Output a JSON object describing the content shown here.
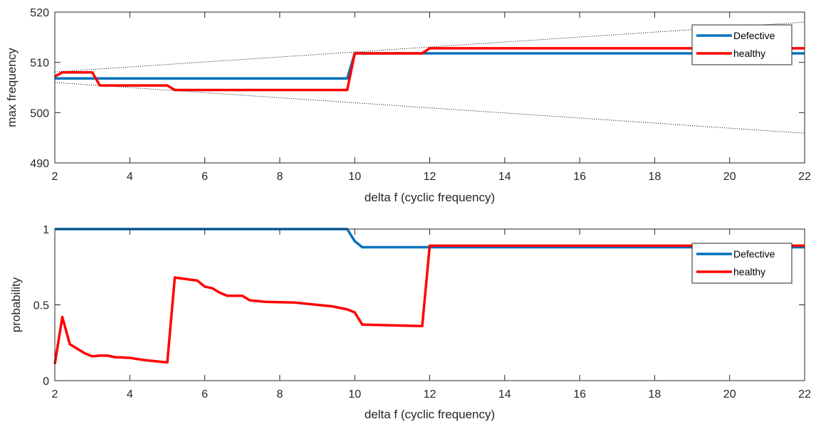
{
  "chart_data": [
    {
      "type": "line",
      "xlabel": "delta f (cyclic frequency)",
      "ylabel": "max frequency",
      "xlim": [
        2,
        22
      ],
      "ylim": [
        490,
        520
      ],
      "xticks": [
        "2",
        "4",
        "6",
        "8",
        "10",
        "12",
        "14",
        "16",
        "18",
        "20",
        "22"
      ],
      "yticks": [
        "490",
        "500",
        "510",
        "520"
      ],
      "legend_position": "top-right",
      "grid": false,
      "series": [
        {
          "name": "Defective",
          "color": "#0072BD",
          "points": [
            [
              2,
              506.8
            ],
            [
              9.8,
              506.8
            ],
            [
              10,
              511.8
            ],
            [
              22,
              511.8
            ]
          ]
        },
        {
          "name": "healthy",
          "color": "#FF0000",
          "points": [
            [
              2,
              507.2
            ],
            [
              2.2,
              508.0
            ],
            [
              3.0,
              508.0
            ],
            [
              3.2,
              505.4
            ],
            [
              5.0,
              505.4
            ],
            [
              5.2,
              504.5
            ],
            [
              9.8,
              504.5
            ],
            [
              10.0,
              511.8
            ],
            [
              11.8,
              511.8
            ],
            [
              12.0,
              512.8
            ],
            [
              22,
              512.8
            ]
          ]
        }
      ],
      "reference_lines": [
        {
          "style": "dotted",
          "color": "#000000",
          "points": [
            [
              2,
              508.1
            ],
            [
              22,
              518.0
            ]
          ]
        },
        {
          "style": "dotted",
          "color": "#000000",
          "points": [
            [
              2,
              506.0
            ],
            [
              22,
              495.9
            ]
          ]
        }
      ]
    },
    {
      "type": "line",
      "xlabel": "delta f (cyclic frequency)",
      "ylabel": "probability",
      "xlim": [
        2,
        22
      ],
      "ylim": [
        0,
        1
      ],
      "xticks": [
        "2",
        "4",
        "6",
        "8",
        "10",
        "12",
        "14",
        "16",
        "18",
        "20",
        "22"
      ],
      "yticks": [
        "0",
        "0.5",
        "1"
      ],
      "legend_position": "top-right",
      "grid": false,
      "series": [
        {
          "name": "Defective",
          "color": "#0072BD",
          "points": [
            [
              2,
              1.0
            ],
            [
              9.8,
              1.0
            ],
            [
              10.0,
              0.92
            ],
            [
              10.2,
              0.88
            ],
            [
              22,
              0.88
            ]
          ]
        },
        {
          "name": "healthy",
          "color": "#FF0000",
          "points": [
            [
              2,
              0.11
            ],
            [
              2.2,
              0.42
            ],
            [
              2.4,
              0.24
            ],
            [
              2.6,
              0.21
            ],
            [
              2.8,
              0.18
            ],
            [
              3.0,
              0.16
            ],
            [
              3.2,
              0.165
            ],
            [
              3.4,
              0.165
            ],
            [
              3.6,
              0.155
            ],
            [
              4.0,
              0.15
            ],
            [
              4.4,
              0.135
            ],
            [
              4.8,
              0.125
            ],
            [
              5.0,
              0.12
            ],
            [
              5.2,
              0.68
            ],
            [
              5.8,
              0.66
            ],
            [
              6.0,
              0.62
            ],
            [
              6.2,
              0.61
            ],
            [
              6.4,
              0.58
            ],
            [
              6.6,
              0.56
            ],
            [
              7.0,
              0.56
            ],
            [
              7.2,
              0.53
            ],
            [
              7.6,
              0.52
            ],
            [
              8.4,
              0.515
            ],
            [
              9.0,
              0.5
            ],
            [
              9.4,
              0.49
            ],
            [
              9.8,
              0.47
            ],
            [
              10.0,
              0.45
            ],
            [
              10.2,
              0.37
            ],
            [
              11.8,
              0.36
            ],
            [
              12.0,
              0.89
            ],
            [
              22,
              0.89
            ]
          ]
        }
      ]
    }
  ]
}
